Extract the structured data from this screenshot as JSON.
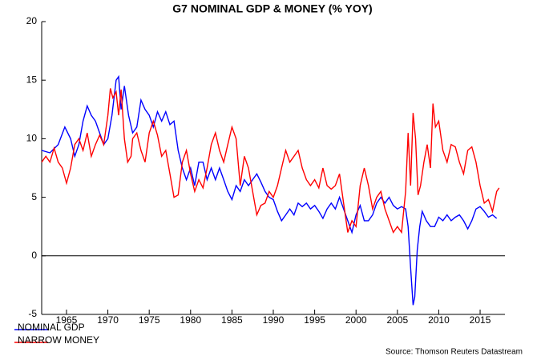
{
  "chart_data": {
    "type": "line",
    "title": "G7 NOMINAL GDP & MONEY (% YOY)",
    "source": "Source: Thomson Reuters Datastream",
    "xlim": [
      1962,
      2018
    ],
    "xticks": [
      1965,
      1970,
      1975,
      1980,
      1985,
      1990,
      1995,
      2000,
      2005,
      2010,
      2015
    ],
    "ylim": [
      -5,
      20
    ],
    "yticks": [
      -5,
      0,
      5,
      10,
      15,
      20
    ],
    "series": [
      {
        "name": "NOMINAL GDP",
        "color": "#0000ff",
        "x": [
          1962,
          1963,
          1964,
          1964.8,
          1965.5,
          1966,
          1966.5,
          1967,
          1967.5,
          1968,
          1968.5,
          1969,
          1969.5,
          1970,
          1970.5,
          1971,
          1971.3,
          1971.6,
          1972,
          1972.5,
          1973,
          1973.5,
          1974,
          1974.5,
          1975,
          1975.5,
          1976,
          1976.5,
          1977,
          1977.5,
          1978,
          1978.5,
          1979,
          1979.5,
          1980,
          1980.5,
          1981,
          1981.5,
          1982,
          1982.5,
          1983,
          1983.5,
          1984,
          1984.5,
          1985,
          1985.5,
          1986,
          1986.5,
          1987,
          1987.5,
          1988,
          1988.5,
          1989,
          1989.5,
          1990,
          1990.5,
          1991,
          1991.5,
          1992,
          1992.5,
          1993,
          1993.5,
          1994,
          1994.5,
          1995,
          1995.5,
          1996,
          1996.5,
          1997,
          1997.5,
          1998,
          1998.5,
          1999,
          1999.5,
          2000,
          2000.5,
          2001,
          2001.5,
          2002,
          2002.5,
          2003,
          2003.5,
          2004,
          2004.5,
          2005,
          2005.5,
          2006,
          2006.3,
          2006.6,
          2006.9,
          2007.1,
          2007.4,
          2007.7,
          2008,
          2008.5,
          2009,
          2009.5,
          2010,
          2010.5,
          2011,
          2011.5,
          2012,
          2012.5,
          2013,
          2013.5,
          2014,
          2014.5,
          2015,
          2015.5,
          2016,
          2016.5,
          2017
        ],
        "values": [
          9.0,
          8.8,
          9.5,
          11.0,
          10.0,
          8.5,
          9.5,
          11.5,
          12.8,
          12.0,
          11.5,
          10.5,
          9.5,
          10.0,
          12.0,
          15.0,
          15.3,
          12.5,
          14.5,
          12.0,
          10.5,
          11.0,
          13.3,
          12.5,
          12.0,
          11.0,
          12.3,
          11.5,
          12.3,
          11.2,
          11.5,
          9.0,
          7.5,
          6.5,
          7.5,
          6.0,
          8.0,
          8.0,
          6.5,
          7.5,
          6.5,
          7.5,
          6.5,
          5.5,
          4.8,
          6.0,
          5.5,
          6.5,
          6.0,
          6.5,
          7.0,
          6.3,
          5.5,
          5.0,
          4.8,
          3.8,
          3.0,
          3.5,
          4.0,
          3.5,
          4.5,
          4.2,
          4.5,
          4.0,
          4.3,
          3.8,
          3.2,
          4.0,
          4.5,
          4.0,
          5.0,
          4.0,
          3.0,
          2.0,
          3.5,
          4.3,
          3.0,
          3.0,
          3.5,
          4.5,
          5.0,
          4.5,
          5.0,
          4.3,
          4.0,
          4.2,
          4.0,
          2.5,
          -1.0,
          -4.2,
          -3.5,
          0.5,
          2.5,
          3.8,
          3.0,
          2.5,
          2.5,
          3.3,
          3.0,
          3.5,
          3.0,
          3.3,
          3.5,
          3.0,
          2.3,
          3.0,
          4.0,
          4.2,
          3.8,
          3.3,
          3.5,
          3.2
        ]
      },
      {
        "name": "NARROW MONEY",
        "color": "#ff0000",
        "x": [
          1962,
          1962.5,
          1963,
          1963.5,
          1964,
          1964.5,
          1965,
          1965.5,
          1966,
          1966.5,
          1967,
          1967.5,
          1968,
          1968.5,
          1969,
          1969.5,
          1970,
          1970.3,
          1970.6,
          1971,
          1971.3,
          1971.6,
          1972,
          1972.4,
          1972.8,
          1973,
          1973.5,
          1974,
          1974.5,
          1975,
          1975.5,
          1976,
          1976.5,
          1977,
          1977.5,
          1978,
          1978.5,
          1979,
          1979.5,
          1980,
          1980.5,
          1981,
          1981.5,
          1982,
          1982.5,
          1983,
          1983.5,
          1984,
          1984.5,
          1985,
          1985.5,
          1986,
          1986.5,
          1987,
          1987.5,
          1988,
          1988.5,
          1989,
          1989.5,
          1990,
          1990.5,
          1991,
          1991.5,
          1992,
          1992.5,
          1993,
          1993.5,
          1994,
          1994.5,
          1995,
          1995.5,
          1996,
          1996.5,
          1997,
          1997.5,
          1998,
          1998.5,
          1999,
          1999.5,
          2000,
          2000.5,
          2001,
          2001.5,
          2002,
          2002.5,
          2003,
          2003.5,
          2004,
          2004.5,
          2005,
          2005.5,
          2006,
          2006.3,
          2006.6,
          2006.9,
          2007.2,
          2007.5,
          2007.8,
          2008.2,
          2008.6,
          2009,
          2009.3,
          2009.6,
          2010,
          2010.5,
          2011,
          2011.5,
          2012,
          2012.5,
          2013,
          2013.5,
          2014,
          2014.5,
          2015,
          2015.5,
          2016,
          2016.5,
          2017,
          2017.3
        ],
        "values": [
          8.0,
          8.5,
          8.0,
          9.2,
          8.0,
          7.5,
          6.2,
          7.5,
          9.5,
          10.0,
          9.0,
          10.5,
          8.5,
          9.5,
          10.3,
          9.5,
          12.0,
          14.3,
          13.5,
          14.0,
          12.0,
          14.2,
          10.0,
          8.0,
          8.5,
          10.0,
          10.5,
          9.0,
          8.0,
          10.5,
          11.5,
          10.3,
          8.5,
          9.0,
          7.0,
          5.0,
          5.2,
          8.0,
          9.0,
          7.0,
          5.5,
          6.5,
          5.8,
          7.5,
          9.5,
          10.5,
          9.0,
          8.0,
          9.5,
          11.0,
          10.0,
          6.0,
          8.5,
          7.5,
          5.5,
          3.5,
          4.3,
          4.5,
          5.5,
          5.0,
          6.0,
          7.5,
          9.0,
          8.0,
          8.5,
          9.0,
          7.5,
          6.5,
          6.0,
          6.5,
          5.8,
          7.5,
          6.0,
          5.7,
          6.0,
          7.0,
          4.5,
          2.0,
          3.0,
          2.5,
          6.0,
          7.5,
          6.0,
          4.0,
          5.0,
          5.5,
          4.0,
          3.0,
          2.0,
          2.5,
          2.0,
          5.5,
          10.5,
          6.0,
          12.2,
          10.0,
          5.2,
          6.0,
          8.0,
          9.5,
          7.5,
          13.0,
          11.0,
          11.5,
          9.0,
          8.0,
          9.5,
          9.3,
          8.0,
          7.0,
          9.0,
          9.3,
          8.0,
          6.0,
          4.5,
          4.8,
          3.8,
          5.5,
          5.8
        ]
      }
    ]
  }
}
